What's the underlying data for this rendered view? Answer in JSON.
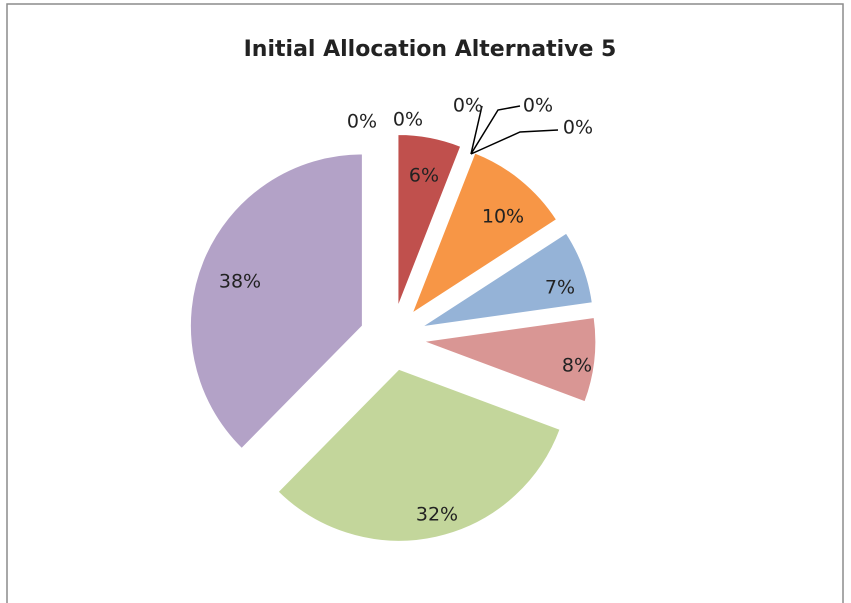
{
  "chart_data": {
    "type": "pie",
    "title": "Initial Allocation Alternative 5",
    "values": [
      0,
      6,
      0,
      0,
      0,
      10,
      7,
      8,
      32,
      38,
      0
    ],
    "value_labels": [
      "0%",
      "6%",
      "0%",
      "0%",
      "0%",
      "10%",
      "7%",
      "8%",
      "32%",
      "38%",
      "0%"
    ],
    "colors": [
      "#4F81BD",
      "#C0504D",
      "#9BBB59",
      "#8064A2",
      "#4BACC6",
      "#F79646",
      "#95B3D7",
      "#D99694",
      "#C3D69B",
      "#B3A2C7",
      "#93CDDD"
    ]
  }
}
